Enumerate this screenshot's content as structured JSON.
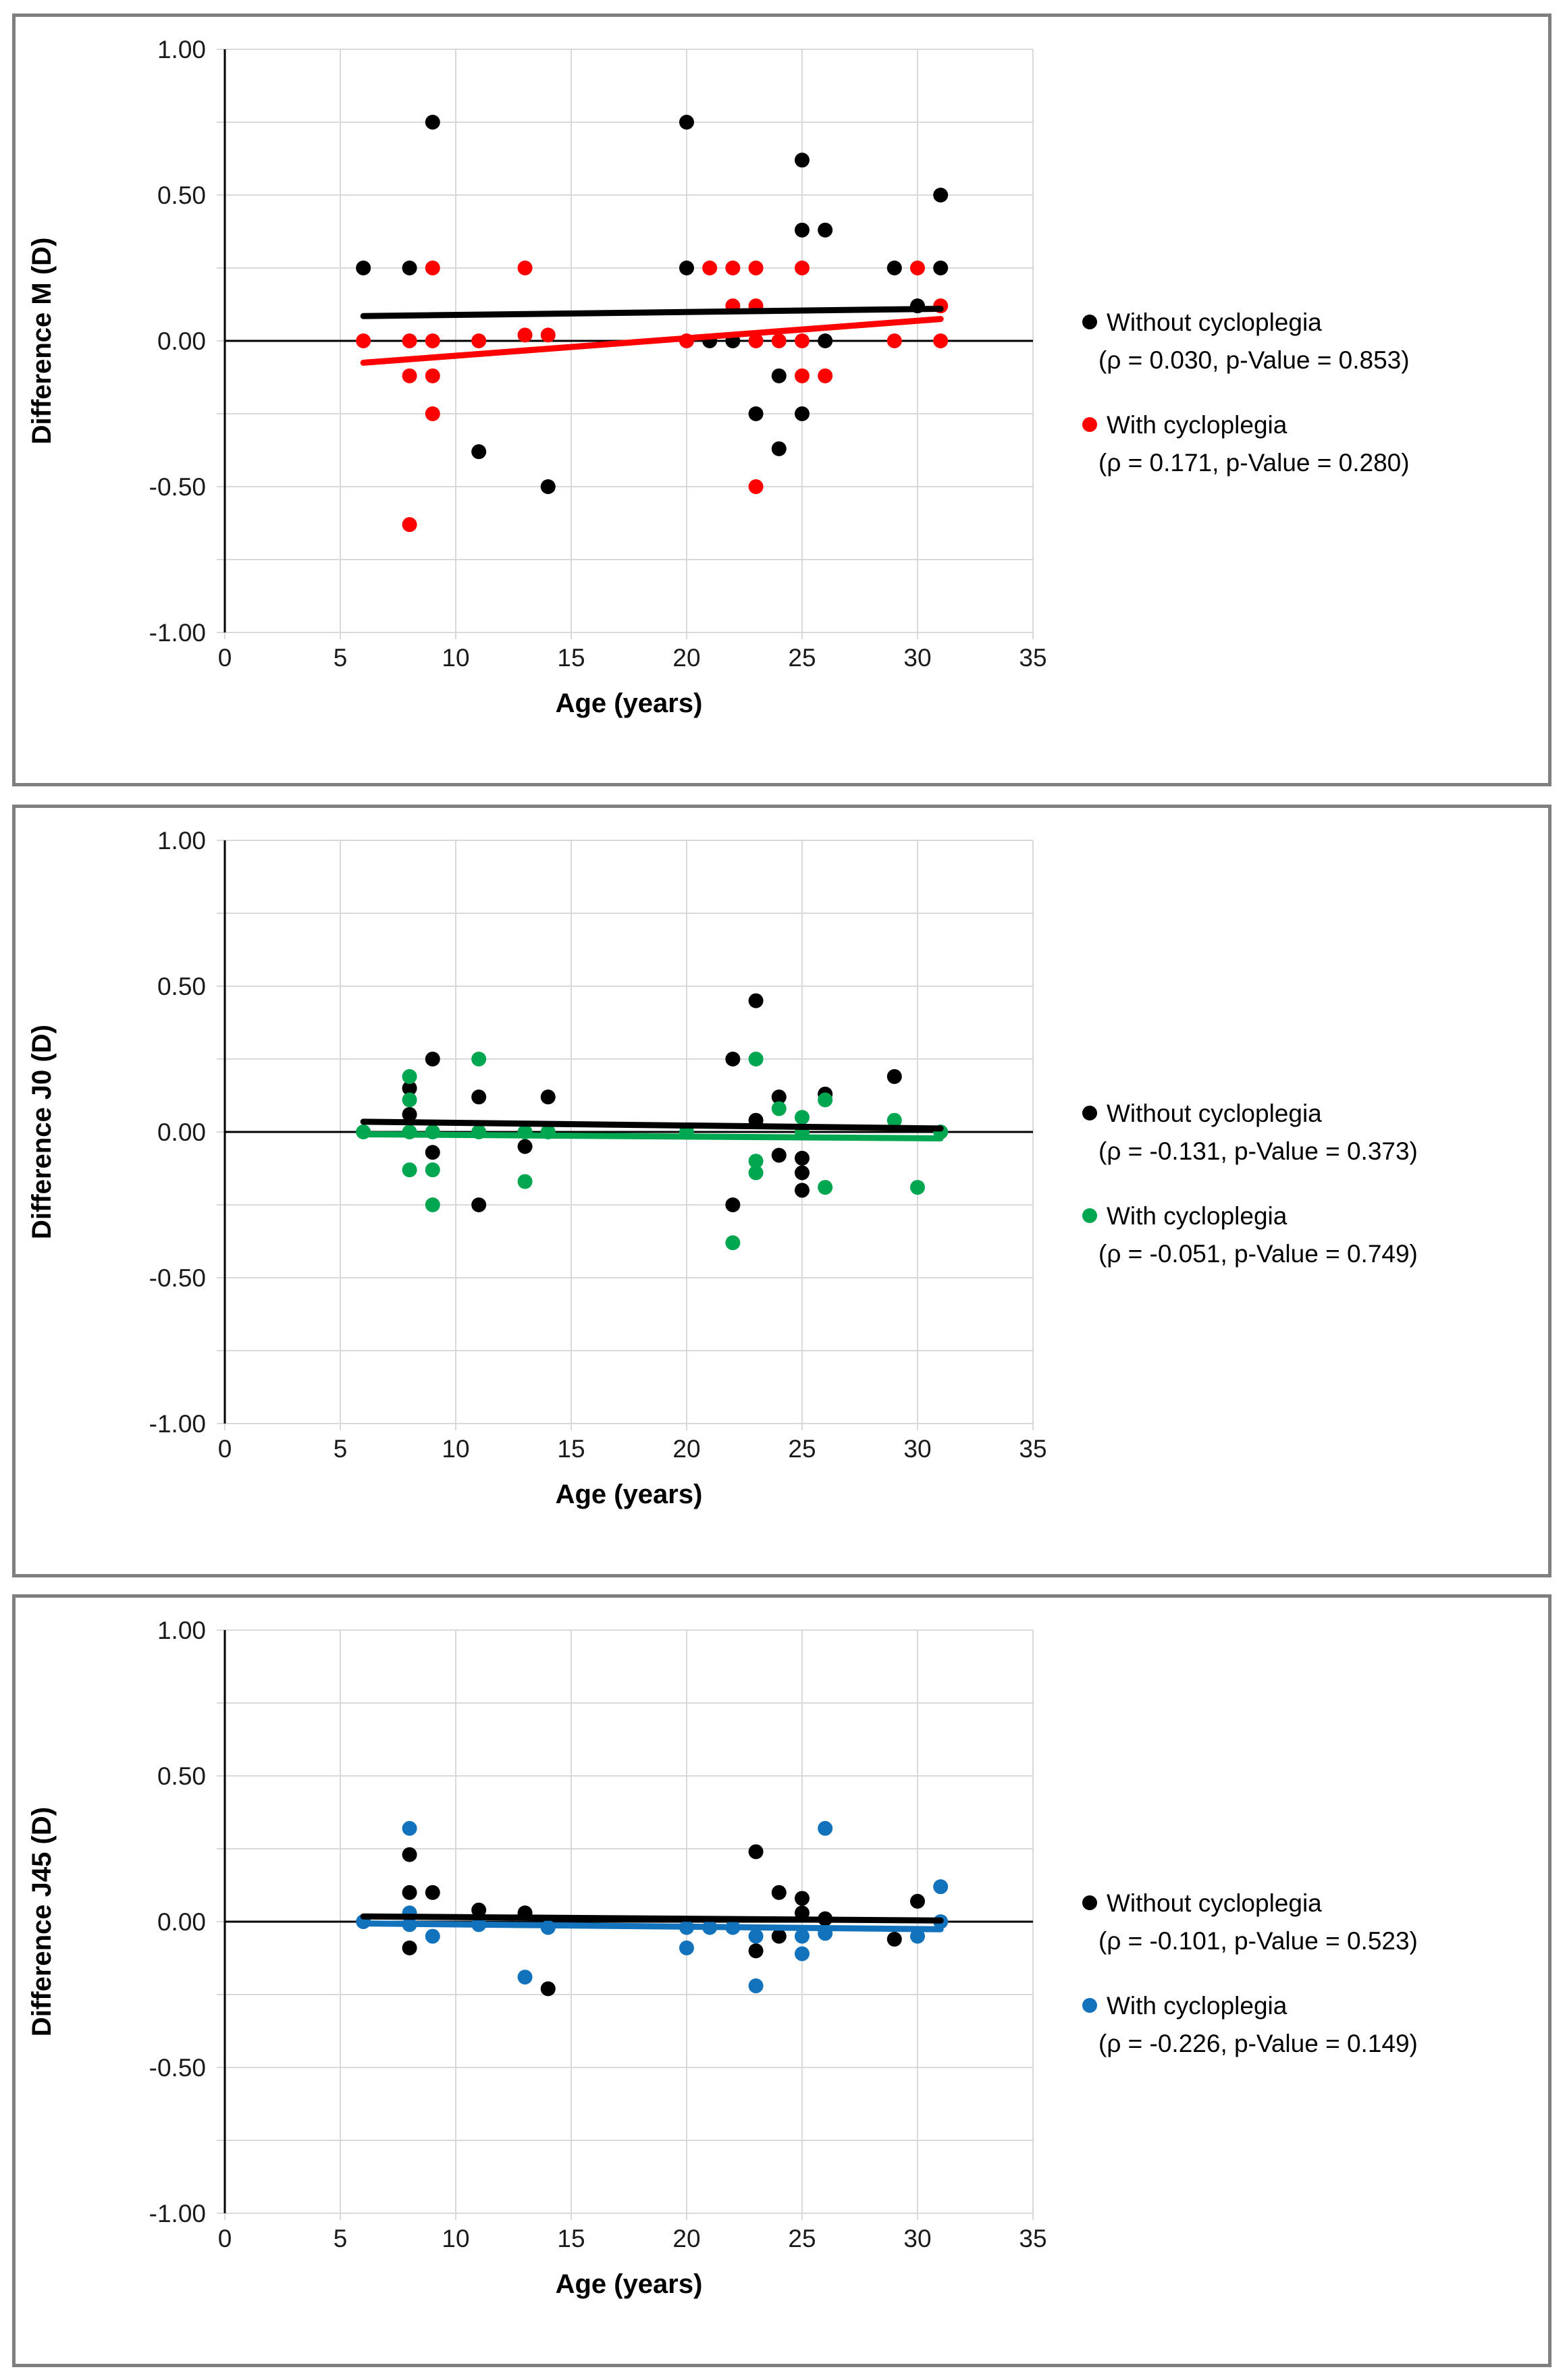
{
  "page": {
    "background": "#ffffff",
    "panel_border_color": "#7f7f7f",
    "gridline_color": "#d9d9d9",
    "axis_color": "#000000"
  },
  "chart_data": [
    {
      "type": "scatter",
      "title": "",
      "xlabel": "Age (years)",
      "ylabel": "Difference M (D)",
      "xlim": [
        0,
        35
      ],
      "ylim": [
        -1,
        1
      ],
      "x_ticks": [
        0,
        5,
        10,
        15,
        20,
        25,
        30,
        35
      ],
      "y_ticks": [
        1,
        0.5,
        0,
        -0.5,
        -1
      ],
      "y_tick_labels": [
        "1.00",
        "0.50",
        "0.00",
        "-0.50",
        "-1.00"
      ],
      "grid": "on",
      "legend_position": "right",
      "series": [
        {
          "name": "Without cycloplegia",
          "stats": "(ρ = 0.030, p-Value = 0.853)",
          "color": "#000000",
          "points": [
            [
              6,
              0.25
            ],
            [
              8,
              0.25
            ],
            [
              9,
              0.75
            ],
            [
              11,
              -0.38
            ],
            [
              14,
              -0.5
            ],
            [
              20,
              0.75
            ],
            [
              20,
              0.25
            ],
            [
              21,
              0.0
            ],
            [
              22,
              0.0
            ],
            [
              23,
              -0.25
            ],
            [
              24,
              -0.12
            ],
            [
              24,
              -0.37
            ],
            [
              25,
              0.62
            ],
            [
              25,
              0.38
            ],
            [
              25,
              -0.25
            ],
            [
              26,
              0.38
            ],
            [
              26,
              0.0
            ],
            [
              29,
              0.25
            ],
            [
              30,
              0.12
            ],
            [
              31,
              0.5
            ],
            [
              31,
              0.25
            ]
          ],
          "trend": {
            "x1": 6,
            "y1": 0.085,
            "x2": 31,
            "y2": 0.11
          }
        },
        {
          "name": "With cycloplegia",
          "stats": "(ρ = 0.171, p-Value = 0.280)",
          "color": "#ff0000",
          "points": [
            [
              6,
              0.0
            ],
            [
              8,
              0.0
            ],
            [
              8,
              -0.12
            ],
            [
              8,
              -0.63
            ],
            [
              9,
              0.25
            ],
            [
              9,
              0.0
            ],
            [
              9,
              -0.12
            ],
            [
              9,
              -0.25
            ],
            [
              11,
              0.0
            ],
            [
              13,
              0.25
            ],
            [
              13,
              0.02
            ],
            [
              14,
              0.02
            ],
            [
              20,
              0.0
            ],
            [
              21,
              0.25
            ],
            [
              22,
              0.25
            ],
            [
              22,
              0.12
            ],
            [
              23,
              0.25
            ],
            [
              23,
              0.12
            ],
            [
              23,
              0.0
            ],
            [
              23,
              -0.5
            ],
            [
              24,
              0.0
            ],
            [
              25,
              0.25
            ],
            [
              25,
              0.0
            ],
            [
              25,
              -0.12
            ],
            [
              26,
              -0.12
            ],
            [
              29,
              0.0
            ],
            [
              30,
              0.25
            ],
            [
              31,
              0.12
            ],
            [
              31,
              0.0
            ]
          ],
          "trend": {
            "x1": 6,
            "y1": -0.075,
            "x2": 31,
            "y2": 0.075
          }
        }
      ]
    },
    {
      "type": "scatter",
      "title": "",
      "xlabel": "Age (years)",
      "ylabel": "Difference J0 (D)",
      "xlim": [
        0,
        35
      ],
      "ylim": [
        -1,
        1
      ],
      "x_ticks": [
        0,
        5,
        10,
        15,
        20,
        25,
        30,
        35
      ],
      "y_ticks": [
        1,
        0.5,
        0,
        -0.5,
        -1
      ],
      "y_tick_labels": [
        "1.00",
        "0.50",
        "0.00",
        "-0.50",
        "-1.00"
      ],
      "grid": "on",
      "legend_position": "right",
      "series": [
        {
          "name": "Without cycloplegia",
          "stats": "(ρ = -0.131, p-Value = 0.373)",
          "color": "#000000",
          "points": [
            [
              8,
              0.15
            ],
            [
              8,
              0.06
            ],
            [
              9,
              0.25
            ],
            [
              9,
              -0.07
            ],
            [
              11,
              0.12
            ],
            [
              11,
              -0.25
            ],
            [
              13,
              -0.05
            ],
            [
              14,
              0.12
            ],
            [
              22,
              0.25
            ],
            [
              22,
              -0.25
            ],
            [
              23,
              0.45
            ],
            [
              23,
              0.04
            ],
            [
              24,
              0.12
            ],
            [
              24,
              -0.08
            ],
            [
              25,
              -0.09
            ],
            [
              25,
              -0.14
            ],
            [
              25,
              -0.2
            ],
            [
              26,
              0.13
            ],
            [
              29,
              0.19
            ]
          ],
          "trend": {
            "x1": 6,
            "y1": 0.035,
            "x2": 31,
            "y2": 0.012
          }
        },
        {
          "name": "With cycloplegia",
          "stats": "(ρ = -0.051, p-Value = 0.749)",
          "color": "#00a650",
          "points": [
            [
              6,
              0.0
            ],
            [
              8,
              0.19
            ],
            [
              8,
              0.11
            ],
            [
              8,
              0.0
            ],
            [
              8,
              -0.13
            ],
            [
              9,
              0.0
            ],
            [
              9,
              -0.13
            ],
            [
              9,
              -0.25
            ],
            [
              11,
              0.25
            ],
            [
              11,
              0.0
            ],
            [
              13,
              0.0
            ],
            [
              13,
              -0.17
            ],
            [
              14,
              0.0
            ],
            [
              20,
              0.0
            ],
            [
              22,
              -0.38
            ],
            [
              23,
              0.25
            ],
            [
              23,
              -0.1
            ],
            [
              23,
              -0.14
            ],
            [
              24,
              0.08
            ],
            [
              25,
              0.05
            ],
            [
              25,
              0.0
            ],
            [
              26,
              0.11
            ],
            [
              26,
              -0.19
            ],
            [
              29,
              0.04
            ],
            [
              30,
              -0.19
            ],
            [
              31,
              0.0
            ]
          ],
          "trend": {
            "x1": 6,
            "y1": -0.008,
            "x2": 31,
            "y2": -0.022
          }
        }
      ]
    },
    {
      "type": "scatter",
      "title": "",
      "xlabel": "Age (years)",
      "ylabel": "Difference J45 (D)",
      "xlim": [
        0,
        35
      ],
      "ylim": [
        -1,
        1
      ],
      "x_ticks": [
        0,
        5,
        10,
        15,
        20,
        25,
        30,
        35
      ],
      "y_ticks": [
        1,
        0.5,
        0,
        -0.5,
        -1
      ],
      "y_tick_labels": [
        "1.00",
        "0.50",
        "0.00",
        "-0.50",
        "-1.00"
      ],
      "grid": "on",
      "legend_position": "right",
      "series": [
        {
          "name": "Without cycloplegia",
          "stats": "(ρ = -0.101, p-Value = 0.523)",
          "color": "#000000",
          "points": [
            [
              8,
              0.23
            ],
            [
              8,
              0.1
            ],
            [
              8,
              -0.09
            ],
            [
              9,
              0.1
            ],
            [
              11,
              0.04
            ],
            [
              13,
              0.03
            ],
            [
              14,
              -0.23
            ],
            [
              23,
              0.24
            ],
            [
              23,
              -0.1
            ],
            [
              24,
              0.1
            ],
            [
              24,
              -0.05
            ],
            [
              25,
              0.08
            ],
            [
              25,
              0.03
            ],
            [
              26,
              0.01
            ],
            [
              29,
              -0.06
            ],
            [
              30,
              0.07
            ]
          ],
          "trend": {
            "x1": 6,
            "y1": 0.018,
            "x2": 31,
            "y2": 0.004
          }
        },
        {
          "name": "With cycloplegia",
          "stats": "(ρ = -0.226, p-Value = 0.149)",
          "color": "#1272bc",
          "points": [
            [
              6,
              0.0
            ],
            [
              8,
              0.32
            ],
            [
              8,
              0.03
            ],
            [
              8,
              -0.01
            ],
            [
              9,
              -0.05
            ],
            [
              11,
              -0.01
            ],
            [
              13,
              -0.19
            ],
            [
              14,
              -0.02
            ],
            [
              20,
              -0.02
            ],
            [
              20,
              -0.09
            ],
            [
              21,
              -0.02
            ],
            [
              22,
              -0.02
            ],
            [
              23,
              -0.05
            ],
            [
              23,
              -0.22
            ],
            [
              25,
              -0.05
            ],
            [
              25,
              -0.11
            ],
            [
              26,
              0.32
            ],
            [
              26,
              -0.04
            ],
            [
              30,
              -0.05
            ],
            [
              31,
              0.12
            ],
            [
              31,
              0.0
            ]
          ],
          "trend": {
            "x1": 6,
            "y1": -0.006,
            "x2": 31,
            "y2": -0.026
          }
        }
      ]
    }
  ]
}
